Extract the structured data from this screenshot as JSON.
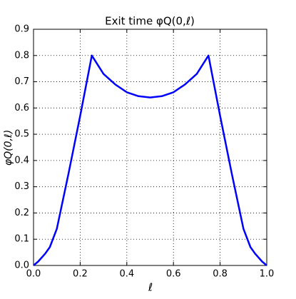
{
  "chart_data": {
    "type": "line",
    "title": "Exit time φQ(0,ℓ)",
    "xlabel": "ℓ",
    "ylabel": "φQ(0,ℓ)",
    "x": [
      0,
      0.02,
      0.05,
      0.07,
      0.1,
      0.15,
      0.2,
      0.25,
      0.3,
      0.35,
      0.4,
      0.45,
      0.5,
      0.55,
      0.6,
      0.65,
      0.7,
      0.75,
      0.8,
      0.85,
      0.9,
      0.93,
      0.95,
      0.98,
      1
    ],
    "series": [
      {
        "color": "#0000ff",
        "values": [
          0,
          0.015,
          0.045,
          0.07,
          0.14,
          0.35,
          0.57,
          0.8,
          0.73,
          0.69,
          0.66,
          0.645,
          0.64,
          0.645,
          0.66,
          0.69,
          0.73,
          0.8,
          0.57,
          0.35,
          0.14,
          0.07,
          0.045,
          0.015,
          0
        ]
      }
    ],
    "xlim": [
      0,
      1
    ],
    "ylim": [
      0,
      0.9
    ],
    "xticks": [
      {
        "value": 0,
        "label": "0.0"
      },
      0.2,
      0.4,
      0.6,
      0.8,
      {
        "value": 1,
        "label": "1.0"
      }
    ],
    "yticks": [
      {
        "value": 0,
        "label": "0.0"
      },
      0.1,
      0.2,
      0.3,
      0.4,
      0.5,
      0.6,
      0.7,
      0.8,
      0.9
    ],
    "grid": true
  }
}
